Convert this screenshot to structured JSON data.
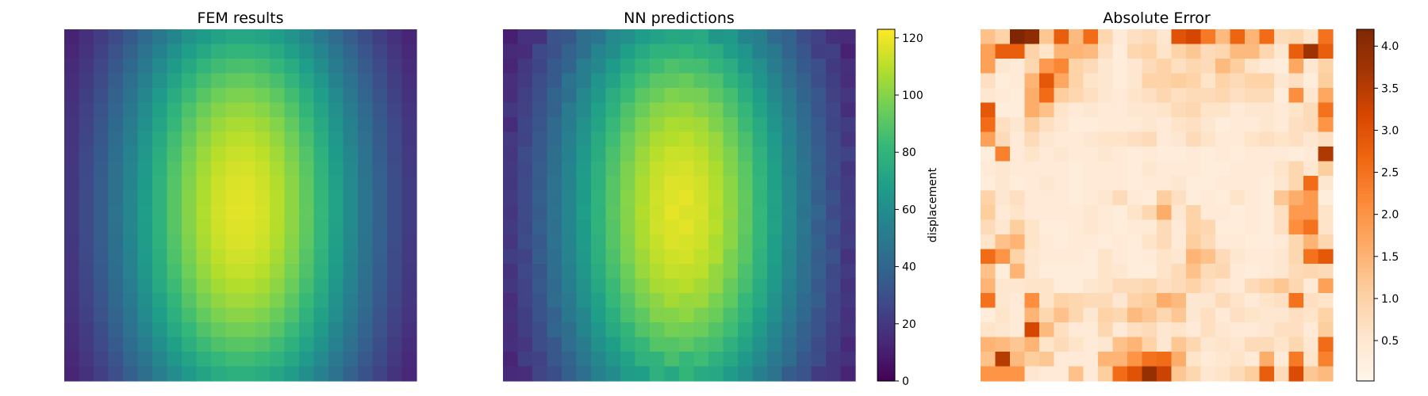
{
  "chart_data": [
    {
      "type": "heatmap",
      "title": "FEM results",
      "colormap": "viridis",
      "grid": [
        24,
        24
      ],
      "value_range": [
        0,
        122
      ],
      "model": "smooth bump peaking at about 121 near column 12, row 12, falling to about 0 at the left and right edges"
    },
    {
      "type": "heatmap",
      "title": "NN predictions",
      "colormap": "viridis",
      "grid": [
        24,
        24
      ],
      "value_range": [
        0,
        122
      ],
      "colorbar": {
        "label": "displacement",
        "ticks": [
          0,
          20,
          40,
          60,
          80,
          100,
          120
        ],
        "range": [
          0,
          123
        ]
      }
    },
    {
      "type": "heatmap",
      "title": "Absolute Error",
      "colormap": "Oranges",
      "grid": [
        24,
        24
      ],
      "colorbar": {
        "label": "",
        "ticks": [
          0.5,
          1.0,
          1.5,
          2.0,
          2.5,
          3.0,
          3.5,
          4.0
        ],
        "range": [
          0.02,
          4.2
        ]
      },
      "values": [
        [
          1.3,
          1.0,
          4.2,
          4.0,
          1.2,
          2.8,
          1.4,
          2.6,
          0.9,
          0.4,
          0.7,
          0.8,
          0.5,
          3.0,
          3.2,
          2.4,
          1.4,
          2.7,
          1.5,
          2.6,
          0.8,
          0.9,
          0.6,
          2.5
        ],
        [
          1.8,
          2.8,
          2.8,
          1.0,
          0.6,
          1.5,
          1.5,
          1.4,
          0.7,
          0.3,
          0.9,
          1.0,
          0.6,
          1.0,
          1.2,
          0.8,
          0.9,
          1.4,
          1.4,
          0.9,
          0.5,
          2.8,
          3.8,
          2.8
        ],
        [
          1.8,
          0.5,
          0.4,
          0.9,
          1.9,
          2.2,
          1.0,
          0.8,
          0.5,
          0.3,
          0.5,
          0.8,
          1.0,
          0.7,
          0.9,
          0.8,
          1.4,
          1.1,
          0.6,
          0.4,
          0.3,
          1.7,
          0.5,
          1.0
        ],
        [
          0.7,
          0.3,
          0.4,
          1.5,
          2.9,
          1.7,
          1.0,
          0.6,
          0.5,
          0.3,
          0.5,
          1.0,
          1.0,
          1.1,
          1.0,
          0.6,
          1.0,
          0.8,
          1.0,
          1.0,
          0.5,
          0.7,
          0.3,
          1.1
        ],
        [
          0.5,
          0.4,
          0.3,
          1.6,
          2.6,
          1.1,
          0.9,
          0.7,
          0.5,
          0.4,
          0.6,
          0.7,
          0.9,
          0.7,
          0.8,
          0.8,
          0.9,
          0.7,
          0.8,
          0.8,
          0.3,
          2.1,
          0.5,
          1.7
        ],
        [
          2.9,
          0.3,
          0.3,
          1.6,
          1.3,
          0.6,
          0.4,
          0.5,
          0.4,
          0.4,
          0.5,
          0.5,
          0.6,
          0.8,
          0.9,
          0.6,
          0.6,
          0.4,
          0.5,
          0.5,
          0.4,
          0.6,
          0.8,
          2.5
        ],
        [
          2.6,
          0.7,
          0.5,
          1.1,
          0.7,
          0.5,
          0.3,
          0.3,
          0.4,
          0.4,
          0.4,
          0.5,
          0.4,
          0.6,
          0.7,
          0.5,
          0.3,
          0.4,
          0.4,
          0.5,
          0.4,
          0.7,
          0.8,
          2.0
        ],
        [
          1.8,
          0.8,
          0.4,
          0.8,
          0.5,
          0.4,
          0.4,
          0.5,
          0.6,
          0.6,
          0.7,
          0.8,
          0.4,
          0.5,
          0.8,
          0.6,
          0.4,
          0.4,
          0.6,
          0.7,
          0.6,
          0.7,
          0.5,
          0.7
        ],
        [
          0.3,
          2.3,
          0.4,
          0.6,
          0.4,
          0.5,
          0.4,
          0.4,
          0.5,
          0.4,
          0.3,
          0.4,
          0.3,
          0.3,
          0.4,
          0.3,
          0.4,
          0.3,
          0.4,
          0.4,
          0.4,
          0.3,
          0.4,
          3.6
        ],
        [
          0.4,
          0.5,
          0.4,
          0.4,
          0.4,
          0.4,
          0.3,
          0.4,
          0.4,
          0.4,
          0.3,
          0.5,
          0.4,
          0.4,
          0.4,
          0.3,
          0.3,
          0.4,
          0.4,
          0.4,
          0.6,
          0.9,
          0.5,
          1.1
        ],
        [
          0.3,
          0.5,
          0.3,
          0.4,
          0.5,
          0.4,
          0.3,
          0.4,
          0.4,
          0.4,
          0.3,
          0.4,
          0.4,
          0.5,
          0.3,
          0.3,
          0.4,
          0.4,
          0.4,
          0.3,
          0.5,
          0.9,
          2.6,
          0.5
        ],
        [
          1.0,
          0.5,
          0.7,
          0.4,
          0.4,
          0.4,
          0.3,
          0.4,
          0.5,
          0.8,
          0.4,
          0.3,
          1.1,
          0.7,
          0.3,
          0.4,
          0.3,
          0.6,
          0.4,
          0.3,
          1.2,
          1.6,
          1.9,
          0.3
        ],
        [
          1.1,
          0.4,
          0.6,
          0.4,
          0.4,
          0.4,
          0.4,
          0.5,
          0.4,
          0.3,
          0.6,
          0.9,
          1.6,
          0.5,
          1.0,
          0.4,
          0.4,
          0.3,
          0.4,
          0.3,
          0.7,
          1.9,
          1.9,
          0.6
        ],
        [
          0.8,
          0.5,
          1.1,
          0.6,
          0.3,
          0.3,
          0.4,
          0.5,
          0.4,
          0.3,
          0.4,
          0.4,
          0.8,
          0.4,
          1.0,
          0.9,
          0.3,
          0.3,
          0.4,
          0.3,
          0.7,
          2.1,
          2.5,
          0.6
        ],
        [
          0.6,
          1.3,
          1.5,
          0.6,
          0.4,
          0.3,
          0.4,
          0.4,
          0.3,
          0.4,
          0.3,
          0.6,
          0.8,
          0.4,
          1.1,
          0.8,
          0.4,
          0.4,
          0.3,
          0.3,
          0.4,
          0.9,
          1.5,
          0.9
        ],
        [
          2.6,
          2.0,
          1.0,
          0.5,
          0.4,
          0.4,
          0.4,
          0.3,
          0.6,
          0.4,
          0.3,
          0.4,
          0.6,
          0.5,
          1.5,
          1.3,
          0.8,
          0.5,
          0.4,
          0.4,
          0.5,
          0.9,
          2.5,
          2.9
        ],
        [
          1.3,
          0.3,
          1.5,
          0.5,
          0.3,
          0.3,
          0.3,
          0.3,
          0.6,
          0.5,
          0.3,
          0.3,
          0.6,
          0.8,
          1.3,
          0.8,
          0.9,
          0.4,
          0.3,
          0.4,
          0.5,
          0.8,
          0.9,
          0.8
        ],
        [
          1.5,
          0.5,
          0.5,
          0.6,
          0.6,
          0.3,
          0.3,
          0.5,
          0.6,
          0.8,
          0.8,
          0.9,
          0.7,
          0.8,
          1.0,
          0.7,
          0.5,
          0.4,
          0.8,
          1.0,
          1.2,
          0.9,
          0.4,
          1.8
        ],
        [
          2.5,
          0.5,
          0.4,
          2.1,
          0.6,
          1.0,
          0.9,
          0.8,
          0.8,
          0.5,
          1.0,
          1.1,
          1.6,
          1.4,
          0.5,
          0.5,
          0.8,
          0.6,
          0.4,
          0.6,
          0.7,
          2.5,
          0.7,
          0.6
        ],
        [
          0.3,
          0.6,
          0.4,
          1.5,
          0.9,
          1.3,
          0.9,
          0.5,
          1.0,
          0.9,
          1.4,
          1.2,
          0.9,
          1.2,
          0.5,
          0.7,
          0.4,
          0.7,
          0.6,
          0.5,
          0.5,
          0.7,
          0.6,
          1.0
        ],
        [
          0.6,
          0.5,
          0.4,
          3.2,
          1.4,
          0.7,
          0.4,
          0.4,
          0.9,
          0.4,
          0.7,
          0.8,
          0.5,
          0.6,
          0.4,
          0.7,
          0.5,
          0.4,
          0.4,
          0.5,
          0.7,
          0.7,
          0.4,
          1.1
        ],
        [
          1.5,
          1.4,
          1.2,
          1.5,
          0.6,
          0.8,
          0.6,
          0.4,
          0.5,
          1.3,
          1.5,
          1.0,
          0.5,
          1.2,
          0.9,
          0.5,
          0.6,
          0.5,
          0.8,
          0.8,
          0.6,
          0.9,
          0.5,
          2.6
        ],
        [
          1.3,
          3.5,
          1.4,
          1.1,
          1.2,
          0.4,
          0.4,
          0.4,
          1.5,
          1.5,
          2.0,
          2.5,
          2.6,
          1.6,
          0.6,
          0.4,
          0.5,
          0.6,
          0.4,
          1.6,
          0.4,
          2.4,
          0.6,
          2.3
        ],
        [
          2.0,
          2.0,
          2.0,
          0.5,
          0.4,
          0.4,
          1.3,
          0.4,
          1.1,
          2.6,
          3.0,
          3.9,
          3.3,
          1.2,
          0.9,
          0.5,
          0.6,
          0.8,
          1.1,
          2.8,
          0.8,
          3.1,
          1.2,
          1.4
        ]
      ]
    }
  ]
}
